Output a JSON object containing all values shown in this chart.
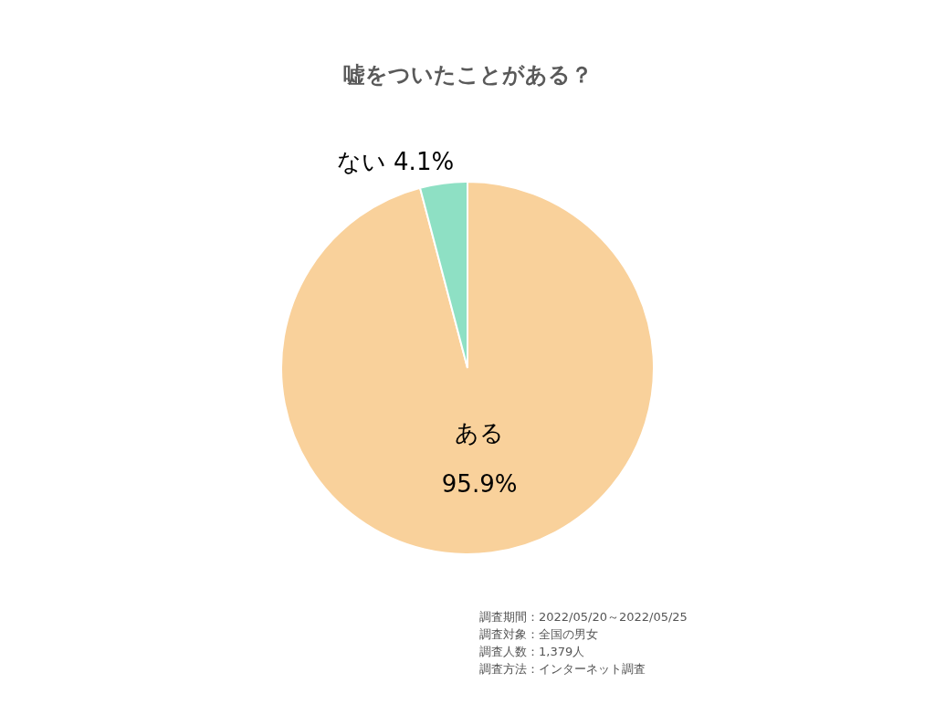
{
  "chart_data": {
    "type": "pie",
    "title": "嘘をついたことがある？",
    "categories": [
      "ある",
      "ない"
    ],
    "values": [
      95.9,
      4.1
    ],
    "value_labels": [
      "95.9%",
      "4.1%"
    ],
    "colors": [
      "#f9d19b",
      "#8ee0c4"
    ],
    "legend": false,
    "annotations": [
      "調査期間：2022/05/20～2022/05/25",
      "調査対象：全国の男女",
      "調査人数：1,379人",
      "調査方法：インターネット調査"
    ]
  }
}
